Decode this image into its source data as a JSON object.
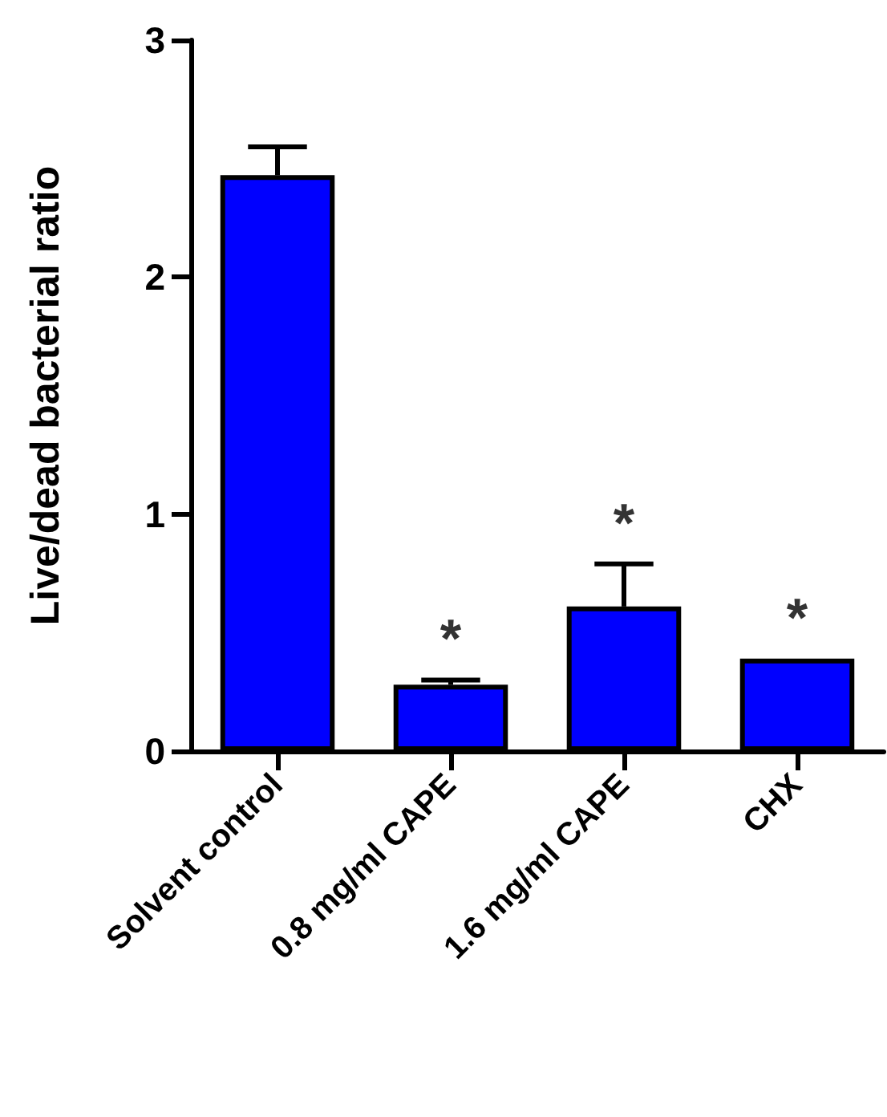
{
  "chart_data": {
    "type": "bar",
    "ylabel": "Live/dead bacterial ratio",
    "categories": [
      "Solvent control",
      "0.8 mg/ml CAPE",
      "1.6 mg/ml CAPE",
      "CHX"
    ],
    "values": [
      2.43,
      0.28,
      0.61,
      0.39
    ],
    "errors": [
      0.12,
      0.02,
      0.18,
      null
    ],
    "color": "#0000ff",
    "ylim": [
      0,
      3
    ],
    "yticks": [
      0,
      1,
      2,
      3
    ],
    "grid": false,
    "annotations": [
      "*",
      "*",
      "*"
    ]
  }
}
